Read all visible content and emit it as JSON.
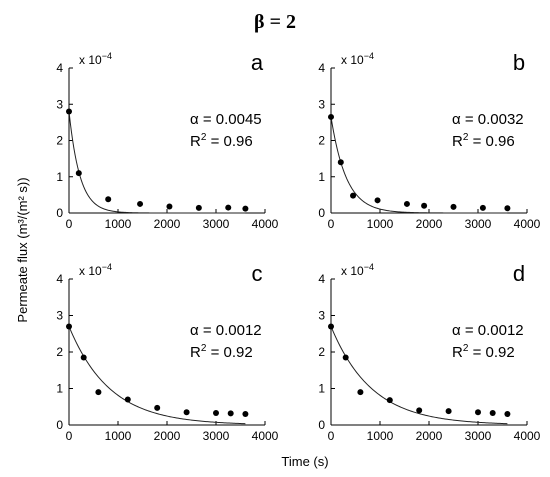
{
  "figure": {
    "title": "β = 2",
    "xlabel": "Time (s)",
    "ylabel": "Permeate flux (m³/(m² s))",
    "scale_label": "x 10",
    "scale_exponent": "−4"
  },
  "chart_data": [
    {
      "type": "scatter",
      "panel": "a",
      "xlim": [
        0,
        4000
      ],
      "ylim": [
        0,
        4
      ],
      "xticks": [
        "0",
        "1000",
        "2000",
        "3000",
        "4000"
      ],
      "yticks": [
        "0",
        "1",
        "2",
        "3",
        "4"
      ],
      "points": {
        "x": [
          0,
          200,
          800,
          1450,
          2050,
          2650,
          3250,
          3600
        ],
        "y": [
          2.8,
          1.1,
          0.38,
          0.25,
          0.18,
          0.14,
          0.15,
          0.12
        ]
      },
      "fit": {
        "y0": 2.8,
        "alpha": 0.0045
      },
      "alpha_text": "α = 0.0045",
      "r2_value": "0.96",
      "grid": false
    },
    {
      "type": "scatter",
      "panel": "b",
      "xlim": [
        0,
        4000
      ],
      "ylim": [
        0,
        4
      ],
      "xticks": [
        "0",
        "1000",
        "2000",
        "3000",
        "4000"
      ],
      "yticks": [
        "0",
        "1",
        "2",
        "3",
        "4"
      ],
      "points": {
        "x": [
          0,
          200,
          450,
          950,
          1550,
          1900,
          2500,
          3100,
          3600
        ],
        "y": [
          2.65,
          1.4,
          0.48,
          0.35,
          0.25,
          0.2,
          0.17,
          0.14,
          0.13
        ]
      },
      "fit": {
        "y0": 2.65,
        "alpha": 0.0032
      },
      "alpha_text": "α = 0.0032",
      "r2_value": "0.96",
      "grid": false
    },
    {
      "type": "scatter",
      "panel": "c",
      "xlim": [
        0,
        4000
      ],
      "ylim": [
        0,
        4
      ],
      "xticks": [
        "0",
        "1000",
        "2000",
        "3000",
        "4000"
      ],
      "yticks": [
        "0",
        "1",
        "2",
        "3",
        "4"
      ],
      "points": {
        "x": [
          0,
          300,
          600,
          1200,
          1800,
          2400,
          3000,
          3300,
          3600
        ],
        "y": [
          2.7,
          1.85,
          0.9,
          0.7,
          0.47,
          0.35,
          0.33,
          0.32,
          0.3
        ]
      },
      "fit": {
        "y0": 2.7,
        "alpha": 0.0012
      },
      "alpha_text": "α = 0.0012",
      "r2_value": "0.92",
      "grid": false
    },
    {
      "type": "scatter",
      "panel": "d",
      "xlim": [
        0,
        4000
      ],
      "ylim": [
        0,
        4
      ],
      "xticks": [
        "0",
        "1000",
        "2000",
        "3000",
        "4000"
      ],
      "yticks": [
        "0",
        "1",
        "2",
        "3",
        "4"
      ],
      "points": {
        "x": [
          0,
          300,
          600,
          1200,
          1800,
          2400,
          3000,
          3300,
          3600
        ],
        "y": [
          2.7,
          1.85,
          0.9,
          0.68,
          0.4,
          0.38,
          0.35,
          0.33,
          0.3
        ]
      },
      "fit": {
        "y0": 2.7,
        "alpha": 0.0012
      },
      "alpha_text": "α = 0.0012",
      "r2_value": "0.92",
      "grid": false
    }
  ]
}
